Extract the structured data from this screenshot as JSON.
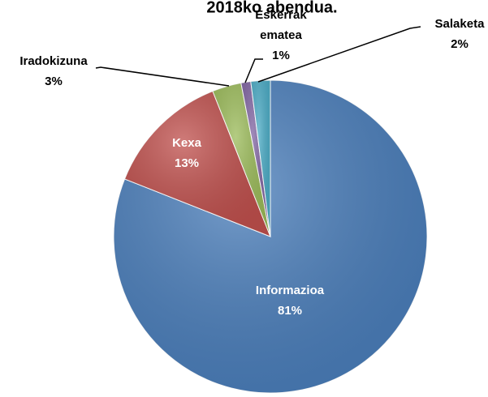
{
  "chart_data": {
    "type": "pie",
    "title": "2018ko abendua.",
    "categories": [
      "Informazioa",
      "Kexa",
      "Iradokizuna",
      "Eskerrak ematea",
      "Salaketa"
    ],
    "values": [
      81,
      13,
      3,
      1,
      2
    ],
    "value_labels": [
      "81%",
      "13%",
      "3%",
      "1%",
      "2%"
    ],
    "colors": [
      "#4a7ebb",
      "#c0504d",
      "#9bbb59",
      "#8064a2",
      "#4bacc6"
    ]
  }
}
